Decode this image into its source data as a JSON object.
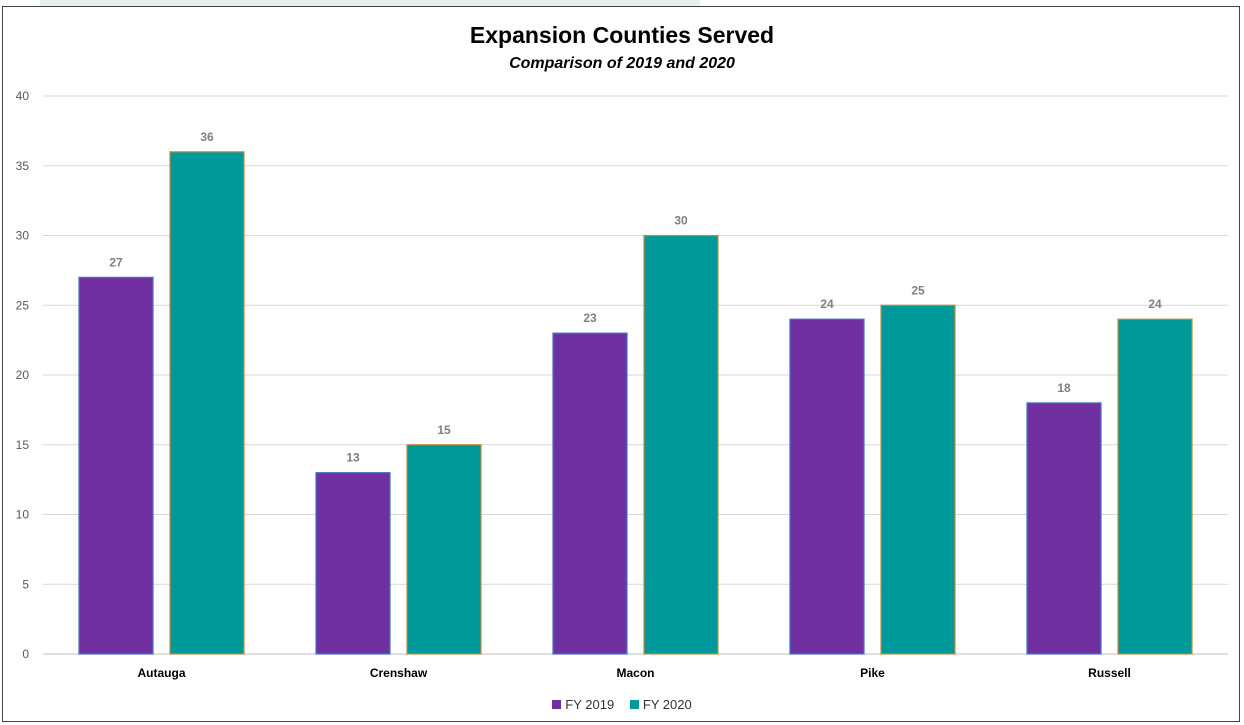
{
  "chart_data": {
    "type": "bar",
    "title": "Expansion Counties Served",
    "subtitle": "Comparison of 2019 and 2020",
    "categories": [
      "Autauga",
      "Crenshaw",
      "Macon",
      "Pike",
      "Russell"
    ],
    "series": [
      {
        "name": "FY 2019",
        "values": [
          27,
          13,
          23,
          24,
          18
        ],
        "color": "#7030a0"
      },
      {
        "name": "FY 2020",
        "values": [
          36,
          15,
          30,
          25,
          24
        ],
        "color": "#009999"
      }
    ],
    "ylim": [
      0,
      40
    ],
    "yticks": [
      "0",
      "5",
      "10",
      "15",
      "20",
      "25",
      "30",
      "35",
      "40"
    ],
    "grid": true,
    "legend_position": "bottom"
  }
}
